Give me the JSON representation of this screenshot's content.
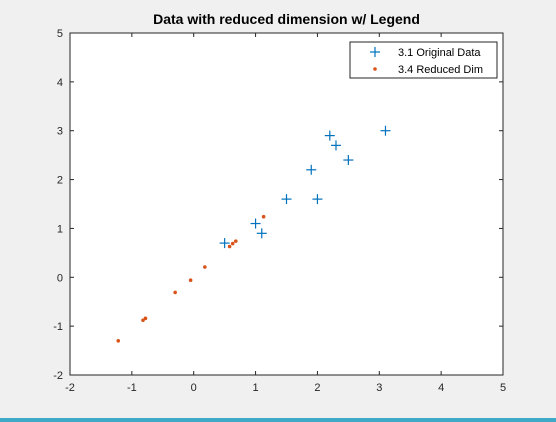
{
  "chart_data": {
    "type": "scatter",
    "title": "Data with reduced dimension w/ Legend",
    "xlabel": "",
    "ylabel": "",
    "xlim": [
      -2,
      5
    ],
    "ylim": [
      -2,
      5
    ],
    "xticks": [
      "-2",
      "-1",
      "0",
      "1",
      "2",
      "3",
      "4",
      "5"
    ],
    "yticks": [
      "-2",
      "-1",
      "0",
      "1",
      "2",
      "3",
      "4",
      "5"
    ],
    "grid": false,
    "legend_location": "top-right",
    "series": [
      {
        "name": "3.1 Original Data",
        "marker": "plus",
        "color": "#0072bd",
        "points": [
          [
            0.5,
            0.7
          ],
          [
            1.0,
            1.1
          ],
          [
            1.1,
            0.9
          ],
          [
            1.5,
            1.6
          ],
          [
            1.9,
            2.2
          ],
          [
            2.0,
            1.6
          ],
          [
            2.2,
            2.9
          ],
          [
            2.3,
            2.7
          ],
          [
            2.5,
            2.4
          ],
          [
            3.1,
            3.0
          ]
        ]
      },
      {
        "name": "3.4 Reduced Dim",
        "marker": "dot",
        "color": "#d95319",
        "points": [
          [
            -1.22,
            -1.3
          ],
          [
            -0.82,
            -0.88
          ],
          [
            -0.78,
            -0.84
          ],
          [
            -0.3,
            -0.31
          ],
          [
            -0.05,
            -0.06
          ],
          [
            0.18,
            0.21
          ],
          [
            0.58,
            0.63
          ],
          [
            0.63,
            0.69
          ],
          [
            0.68,
            0.74
          ],
          [
            1.13,
            1.24
          ]
        ]
      }
    ]
  }
}
